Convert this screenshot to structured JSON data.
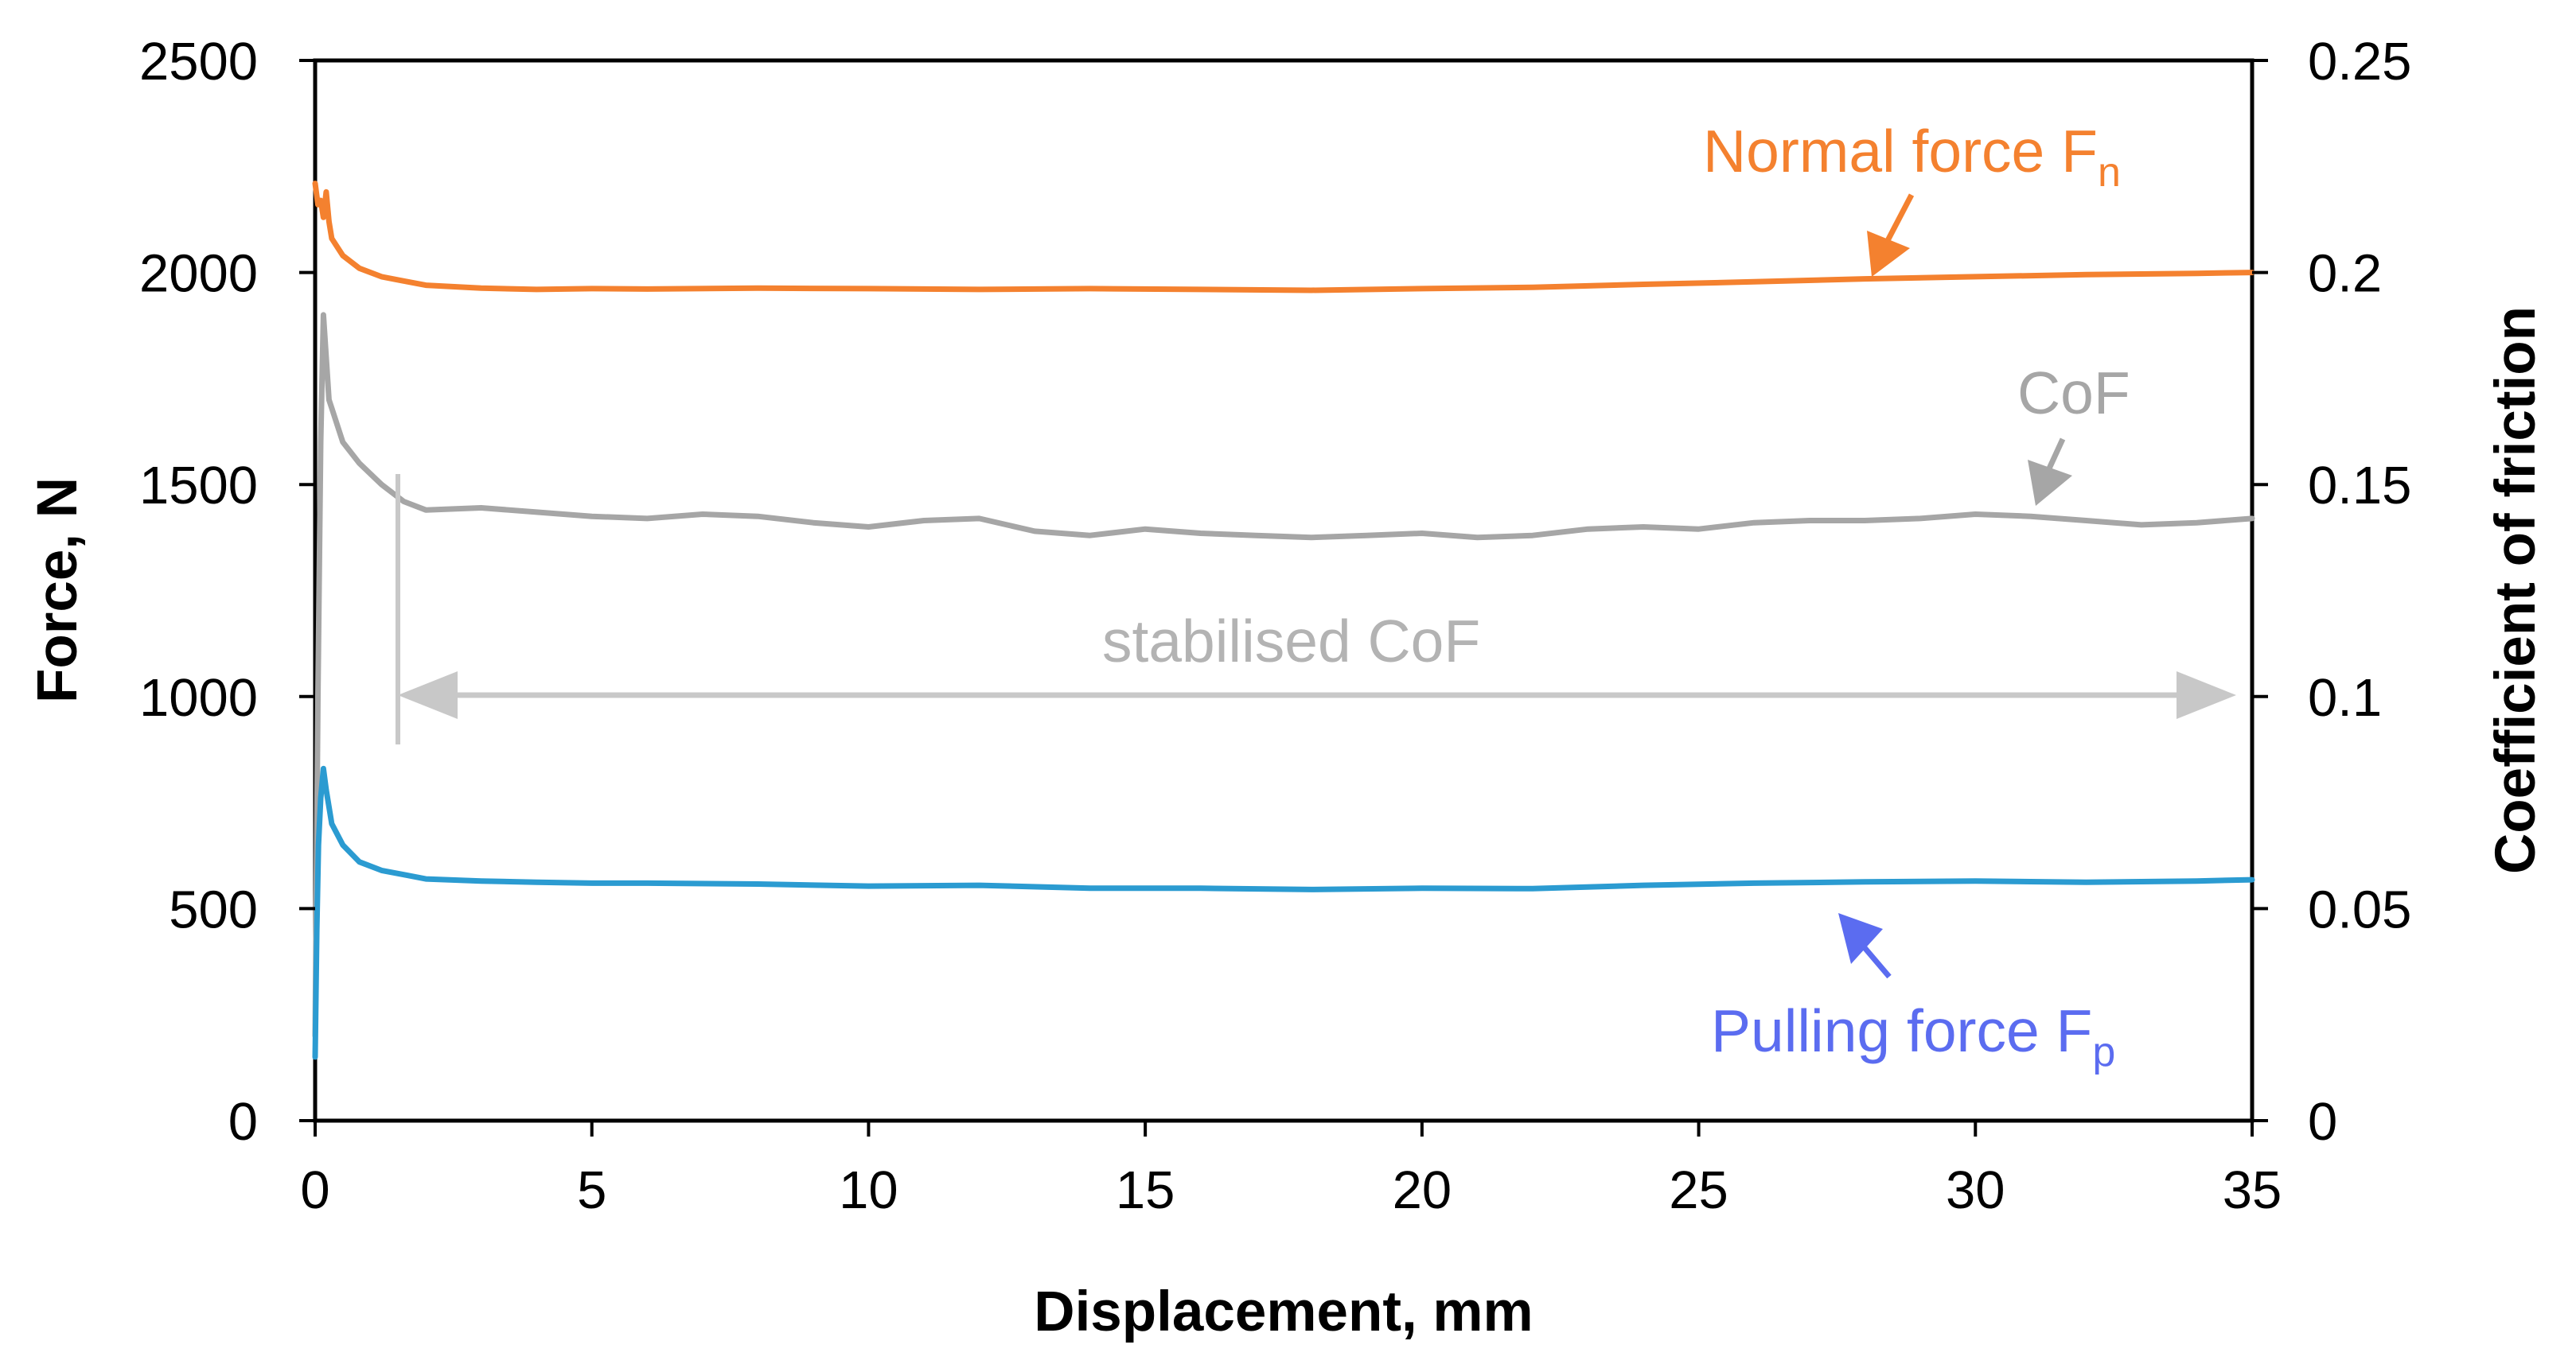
{
  "chart_data": {
    "type": "line",
    "title": "",
    "xlabel": "Displacement, mm",
    "ylabel": "Force, N",
    "y2label": "Coefficient of friction",
    "xlim": [
      0,
      35
    ],
    "ylim": [
      0,
      2500
    ],
    "y2lim": [
      0,
      0.25
    ],
    "grid": false,
    "x_ticks": [
      "0",
      "5",
      "10",
      "15",
      "20",
      "25",
      "30",
      "35"
    ],
    "x_tick_values": [
      0,
      5,
      10,
      15,
      20,
      25,
      30,
      35
    ],
    "y_ticks": [
      "0",
      "500",
      "1000",
      "1500",
      "2000",
      "2500"
    ],
    "y_tick_values": [
      0,
      500,
      1000,
      1500,
      2000,
      2500
    ],
    "y2_ticks": [
      "0",
      "0.05",
      "0.1",
      "0.15",
      "0.2",
      "0.25"
    ],
    "y2_tick_values": [
      0,
      0.05,
      0.1,
      0.15,
      0.2,
      0.25
    ],
    "series": [
      {
        "name": "Normal force Fn",
        "axis": "left",
        "color": "#F4812F",
        "x": [
          0,
          0.05,
          0.1,
          0.15,
          0.2,
          0.25,
          0.3,
          0.5,
          0.8,
          1.2,
          1.6,
          2,
          3,
          4,
          5,
          6,
          8,
          10,
          12,
          14,
          16,
          18,
          20,
          22,
          24,
          26,
          28,
          30,
          32,
          34,
          35
        ],
        "values": [
          2210,
          2160,
          2170,
          2130,
          2190,
          2120,
          2080,
          2040,
          2010,
          1990,
          1980,
          1970,
          1963,
          1960,
          1962,
          1961,
          1963,
          1962,
          1960,
          1962,
          1960,
          1958,
          1962,
          1965,
          1972,
          1978,
          1985,
          1990,
          1995,
          1998,
          2000
        ]
      },
      {
        "name": "CoF",
        "axis": "right",
        "color": "#A6A6A6",
        "x": [
          0,
          0.05,
          0.1,
          0.15,
          0.2,
          0.25,
          0.3,
          0.5,
          0.8,
          1.2,
          1.6,
          2,
          3,
          4,
          5,
          6,
          7,
          8,
          9,
          10,
          11,
          12,
          13,
          14,
          15,
          16,
          17,
          18,
          19,
          20,
          21,
          22,
          23,
          24,
          25,
          26,
          27,
          28,
          29,
          30,
          31,
          32,
          33,
          34,
          35
        ],
        "values": [
          0.02,
          0.1,
          0.16,
          0.19,
          0.18,
          0.17,
          0.168,
          0.16,
          0.155,
          0.15,
          0.146,
          0.144,
          0.1445,
          0.1435,
          0.1425,
          0.142,
          0.143,
          0.1425,
          0.141,
          0.14,
          0.1415,
          0.142,
          0.139,
          0.138,
          0.1395,
          0.1385,
          0.138,
          0.1375,
          0.138,
          0.1385,
          0.1375,
          0.138,
          0.1395,
          0.14,
          0.1395,
          0.141,
          0.1415,
          0.1415,
          0.142,
          0.143,
          0.1425,
          0.1415,
          0.1405,
          0.141,
          0.142
        ]
      },
      {
        "name": "Pulling force Fp",
        "axis": "left",
        "color": "#2B9BD1",
        "x": [
          0,
          0.03,
          0.06,
          0.1,
          0.15,
          0.2,
          0.25,
          0.3,
          0.5,
          0.8,
          1.2,
          1.6,
          2,
          3,
          4,
          5,
          6,
          8,
          10,
          12,
          14,
          16,
          18,
          20,
          22,
          24,
          26,
          28,
          30,
          32,
          34,
          35
        ],
        "values": [
          150,
          450,
          650,
          760,
          830,
          780,
          740,
          700,
          650,
          610,
          590,
          580,
          570,
          565,
          562,
          560,
          560,
          558,
          553,
          555,
          548,
          548,
          545,
          548,
          547,
          555,
          560,
          563,
          565,
          562,
          565,
          568
        ]
      }
    ],
    "annotations": [
      {
        "name": "normal-force-label",
        "text": "Normal force F",
        "sub": "n",
        "color": "#F4812F"
      },
      {
        "name": "cof-label",
        "text": "CoF",
        "color": "#A6A6A6"
      },
      {
        "name": "stabilised-label",
        "text": "stabilised CoF",
        "color": "#B3B3B3"
      },
      {
        "name": "pulling-force-label",
        "text": "Pulling force F",
        "sub": "p",
        "color": "#5B6CF0"
      }
    ],
    "stabilised_range": [
      1.5,
      35
    ]
  }
}
